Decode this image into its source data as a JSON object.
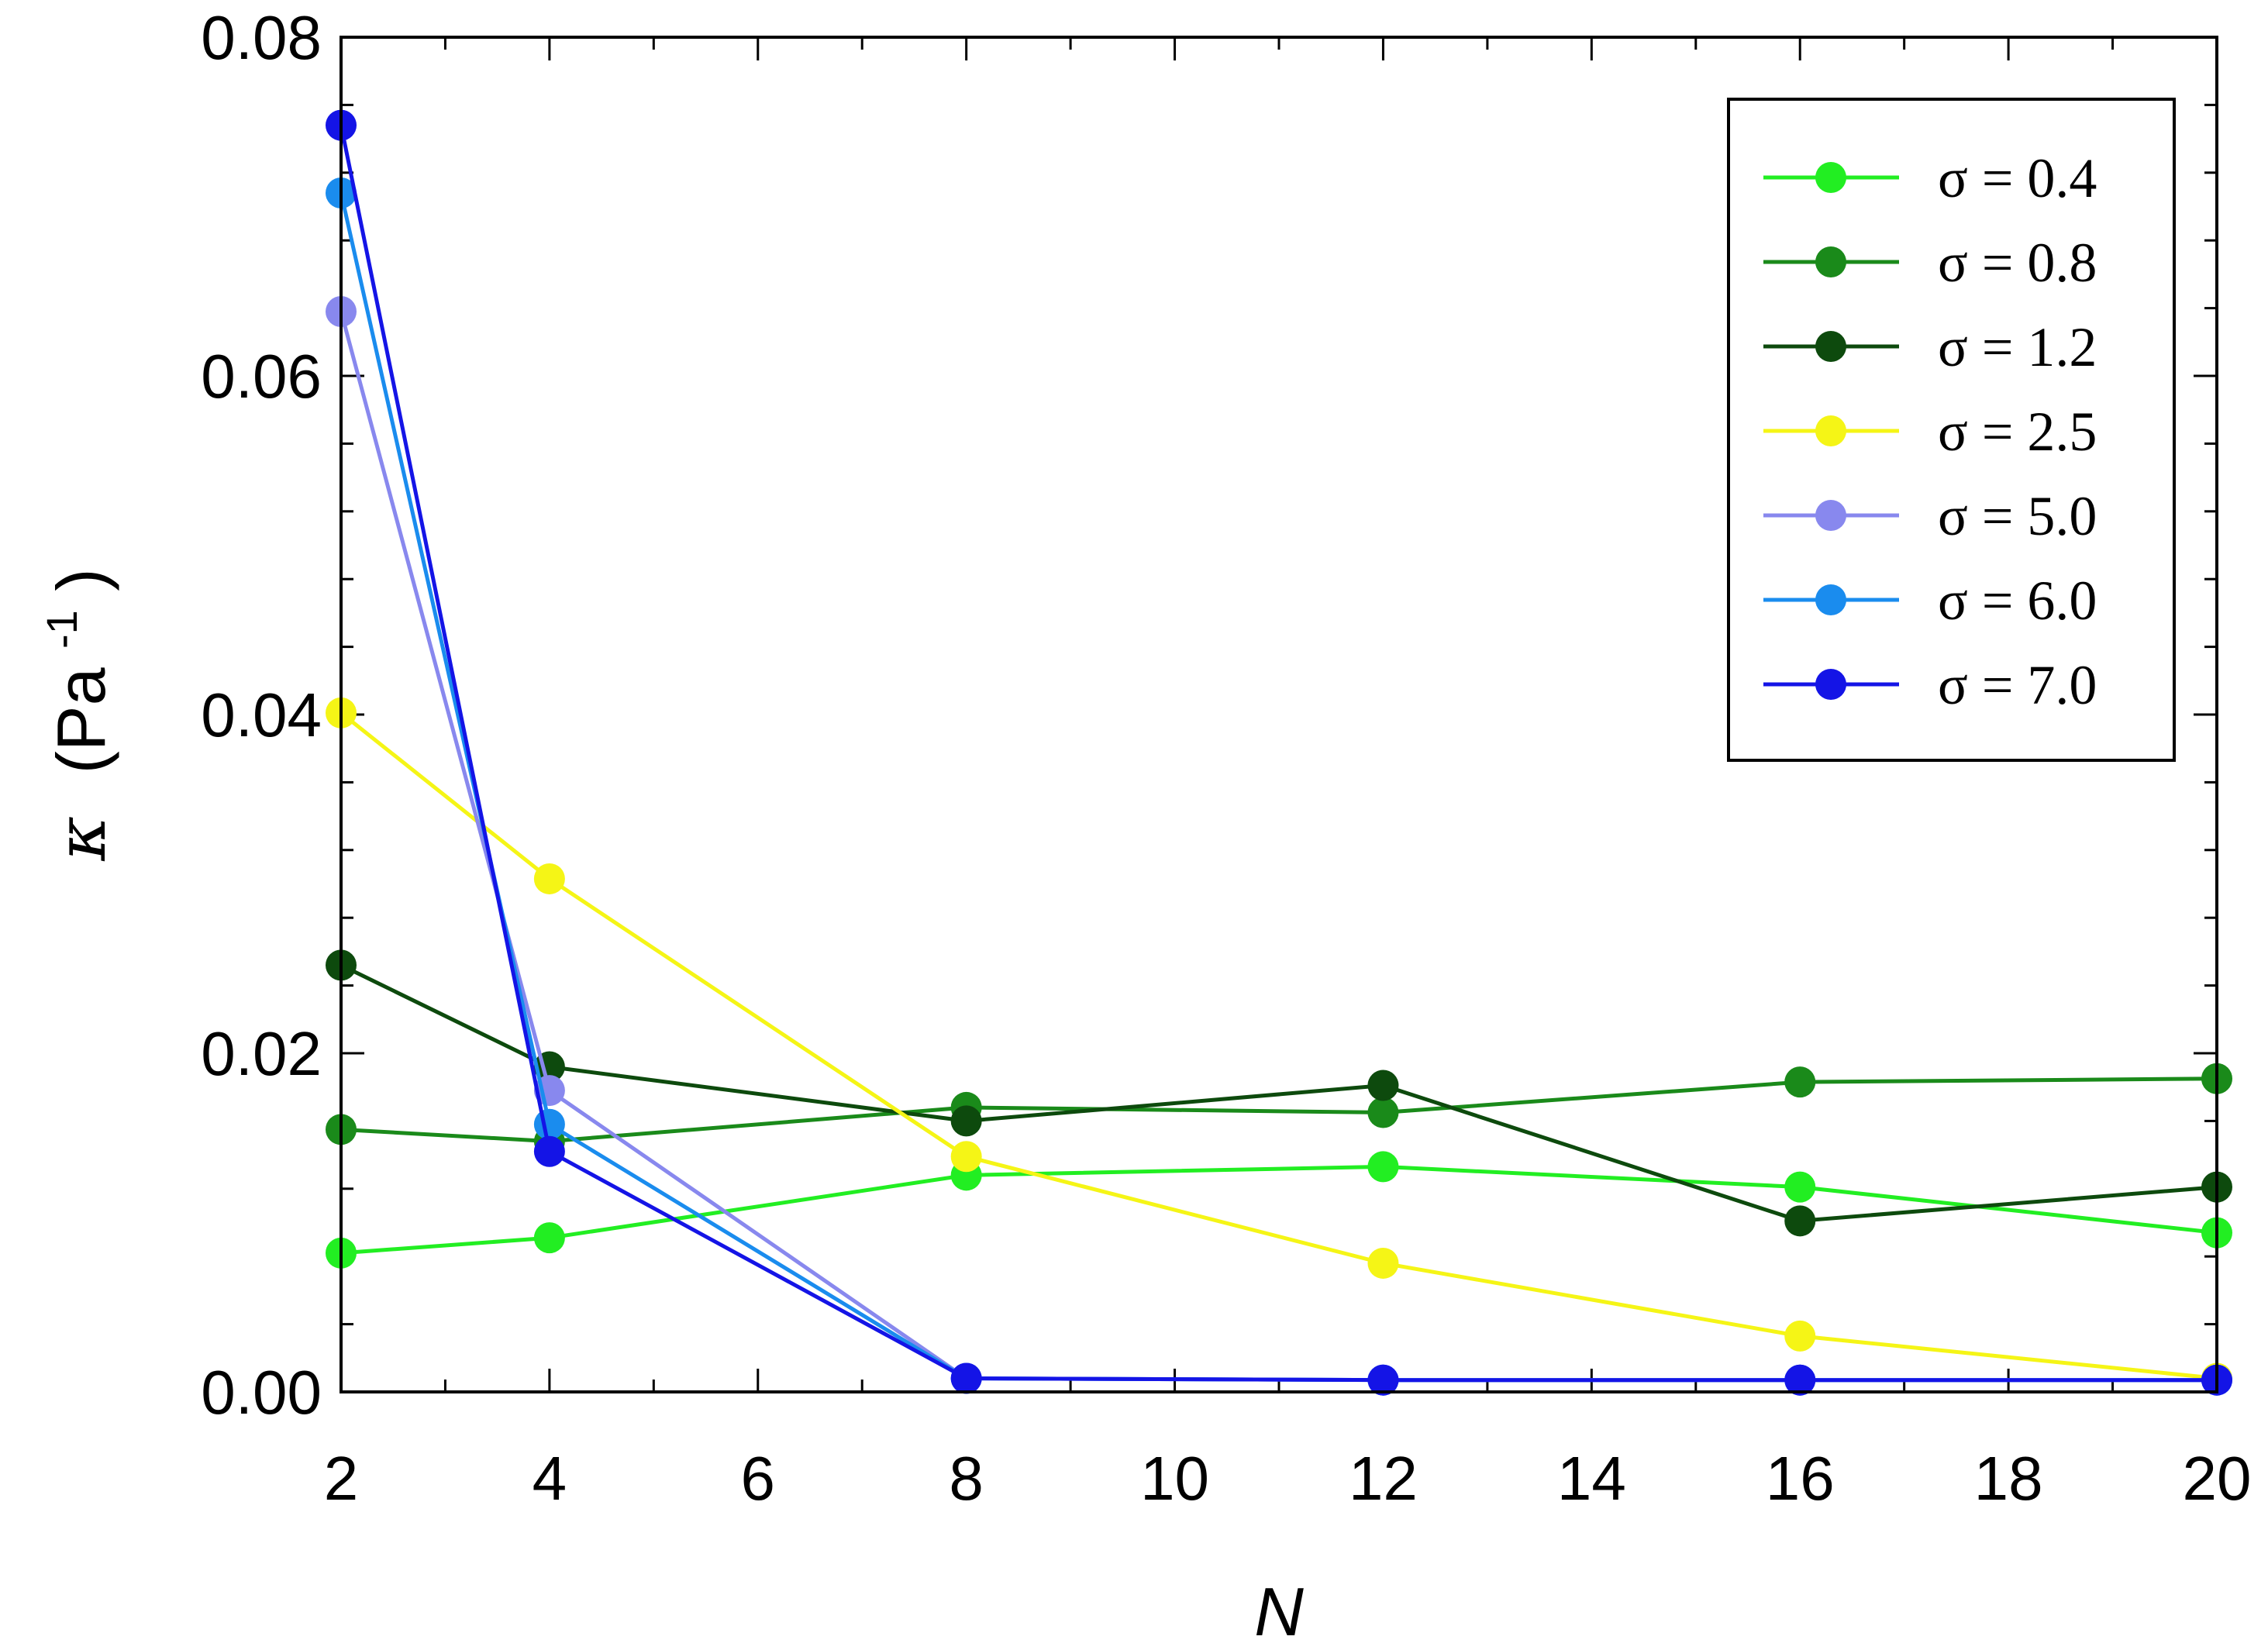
{
  "chart_data": {
    "type": "line",
    "xlabel": "N",
    "ylabel": {
      "symbol": "κ",
      "unit": "(Pa",
      "exponent": "-1",
      "close": ")"
    },
    "xlim": [
      2,
      20
    ],
    "ylim": [
      0,
      0.08
    ],
    "xticks": [
      2,
      4,
      6,
      8,
      10,
      12,
      14,
      16,
      18,
      20
    ],
    "xtick_labels": [
      "2",
      "4",
      "6",
      "8",
      "10",
      "12",
      "14",
      "16",
      "18",
      "20"
    ],
    "yticks": [
      0,
      0.02,
      0.04,
      0.06,
      0.08
    ],
    "ytick_labels": [
      "0.00",
      "0.02",
      "0.04",
      "0.06",
      "0.08"
    ],
    "minor_x_step": 1,
    "minor_y_step": 0.004,
    "legend_position": "top-right",
    "x": [
      2,
      4,
      8,
      12,
      16,
      20
    ],
    "series": [
      {
        "name": "σ = 0.4",
        "color": "#22ee22",
        "values": [
          0.0082,
          0.0091,
          0.0128,
          0.0133,
          0.0121,
          0.0094
        ]
      },
      {
        "name": "σ = 0.8",
        "color": "#1a8a1a",
        "values": [
          0.0155,
          0.0148,
          0.0168,
          0.0165,
          0.0183,
          0.0185
        ]
      },
      {
        "name": "σ = 1.2",
        "color": "#0d4a0d",
        "values": [
          0.0252,
          0.0192,
          0.016,
          0.0181,
          0.0101,
          0.0121
        ]
      },
      {
        "name": "σ = 2.5",
        "color": "#f5f516",
        "values": [
          0.0401,
          0.0303,
          0.0139,
          0.0076,
          0.0033,
          0.0008
        ]
      },
      {
        "name": "σ = 5.0",
        "color": "#8888ee",
        "values": [
          0.0638,
          0.0178,
          0.0008,
          0.0007,
          0.0007,
          0.0007
        ]
      },
      {
        "name": "σ = 6.0",
        "color": "#1a8cee",
        "values": [
          0.0708,
          0.0158,
          0.0008,
          0.0007,
          0.0007,
          0.0007
        ]
      },
      {
        "name": "σ = 7.0",
        "color": "#1414e6",
        "values": [
          0.0748,
          0.0142,
          0.0008,
          0.0007,
          0.0007,
          0.0007
        ]
      }
    ]
  }
}
